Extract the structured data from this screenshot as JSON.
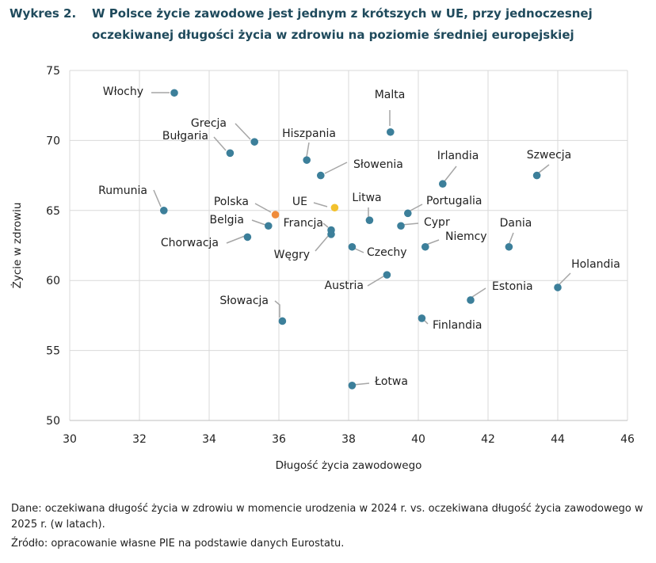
{
  "header": {
    "number": "Wykres 2.",
    "line1": "W Polsce życie zawodowe jest jednym z krótszych w UE, przy jednoczesnej",
    "line2": "oczekiwanej długości życia w zdrowiu na poziomie średniej europejskiej"
  },
  "footer": {
    "data_note": "Dane: oczekiwana długość życia w zdrowiu w momencie urodzenia w 2024 r. vs. oczekiwana długość życia zawodowego w 2025 r. (w latach).",
    "source_note": "Źródło: opracowanie własne PIE na podstawie danych Eurostatu."
  },
  "colors": {
    "default": "#3c7f9a",
    "poland": "#ef8b3a",
    "eu": "#f2c12e",
    "title": "#1f4a5c"
  },
  "chart_data": {
    "type": "scatter",
    "xlabel": "Długość życia zawodowego",
    "ylabel": "Życie w zdrowiu",
    "xlim": [
      30,
      46
    ],
    "ylim": [
      50,
      75
    ],
    "xticks": [
      30,
      32,
      34,
      36,
      38,
      40,
      42,
      44,
      46
    ],
    "yticks": [
      50,
      55,
      60,
      65,
      70,
      75
    ],
    "grid": true,
    "points": [
      {
        "label": "Włochy",
        "x": 33.0,
        "y": 73.4,
        "color": "default"
      },
      {
        "label": "Malta",
        "x": 39.2,
        "y": 70.6,
        "color": "default"
      },
      {
        "label": "Grecja",
        "x": 35.3,
        "y": 69.9,
        "color": "default"
      },
      {
        "label": "Bułgaria",
        "x": 34.6,
        "y": 69.1,
        "color": "default"
      },
      {
        "label": "Hiszpania",
        "x": 36.8,
        "y": 68.6,
        "color": "default"
      },
      {
        "label": "Słowenia",
        "x": 37.2,
        "y": 67.5,
        "color": "default"
      },
      {
        "label": "Irlandia",
        "x": 40.7,
        "y": 66.9,
        "color": "default"
      },
      {
        "label": "Szwecja",
        "x": 43.4,
        "y": 67.5,
        "color": "default"
      },
      {
        "label": "Rumunia",
        "x": 32.7,
        "y": 65.0,
        "color": "default"
      },
      {
        "label": "Polska",
        "x": 35.9,
        "y": 64.7,
        "color": "poland"
      },
      {
        "label": "UE",
        "x": 37.6,
        "y": 65.2,
        "color": "eu"
      },
      {
        "label": "Litwa",
        "x": 38.6,
        "y": 64.3,
        "color": "default"
      },
      {
        "label": "Portugalia",
        "x": 39.7,
        "y": 64.8,
        "color": "default"
      },
      {
        "label": "Belgia",
        "x": 35.7,
        "y": 63.9,
        "color": "default"
      },
      {
        "label": "Francja",
        "x": 37.5,
        "y": 63.6,
        "color": "default"
      },
      {
        "label": "Cypr",
        "x": 39.5,
        "y": 63.9,
        "color": "default"
      },
      {
        "label": "Chorwacja",
        "x": 35.1,
        "y": 63.1,
        "color": "default"
      },
      {
        "label": "Węgry",
        "x": 37.5,
        "y": 63.3,
        "color": "default"
      },
      {
        "label": "Czechy",
        "x": 38.1,
        "y": 62.4,
        "color": "default"
      },
      {
        "label": "Niemcy",
        "x": 40.2,
        "y": 62.4,
        "color": "default"
      },
      {
        "label": "Dania",
        "x": 42.6,
        "y": 62.4,
        "color": "default"
      },
      {
        "label": "Holandia",
        "x": 44.0,
        "y": 59.5,
        "color": "default"
      },
      {
        "label": "Austria",
        "x": 39.1,
        "y": 60.4,
        "color": "default"
      },
      {
        "label": "Estonia",
        "x": 41.5,
        "y": 58.6,
        "color": "default"
      },
      {
        "label": "Słowacja",
        "x": 36.1,
        "y": 57.1,
        "color": "default"
      },
      {
        "label": "Finlandia",
        "x": 40.1,
        "y": 57.3,
        "color": "default"
      },
      {
        "label": "Łotwa",
        "x": 38.1,
        "y": 52.5,
        "color": "default"
      }
    ]
  }
}
